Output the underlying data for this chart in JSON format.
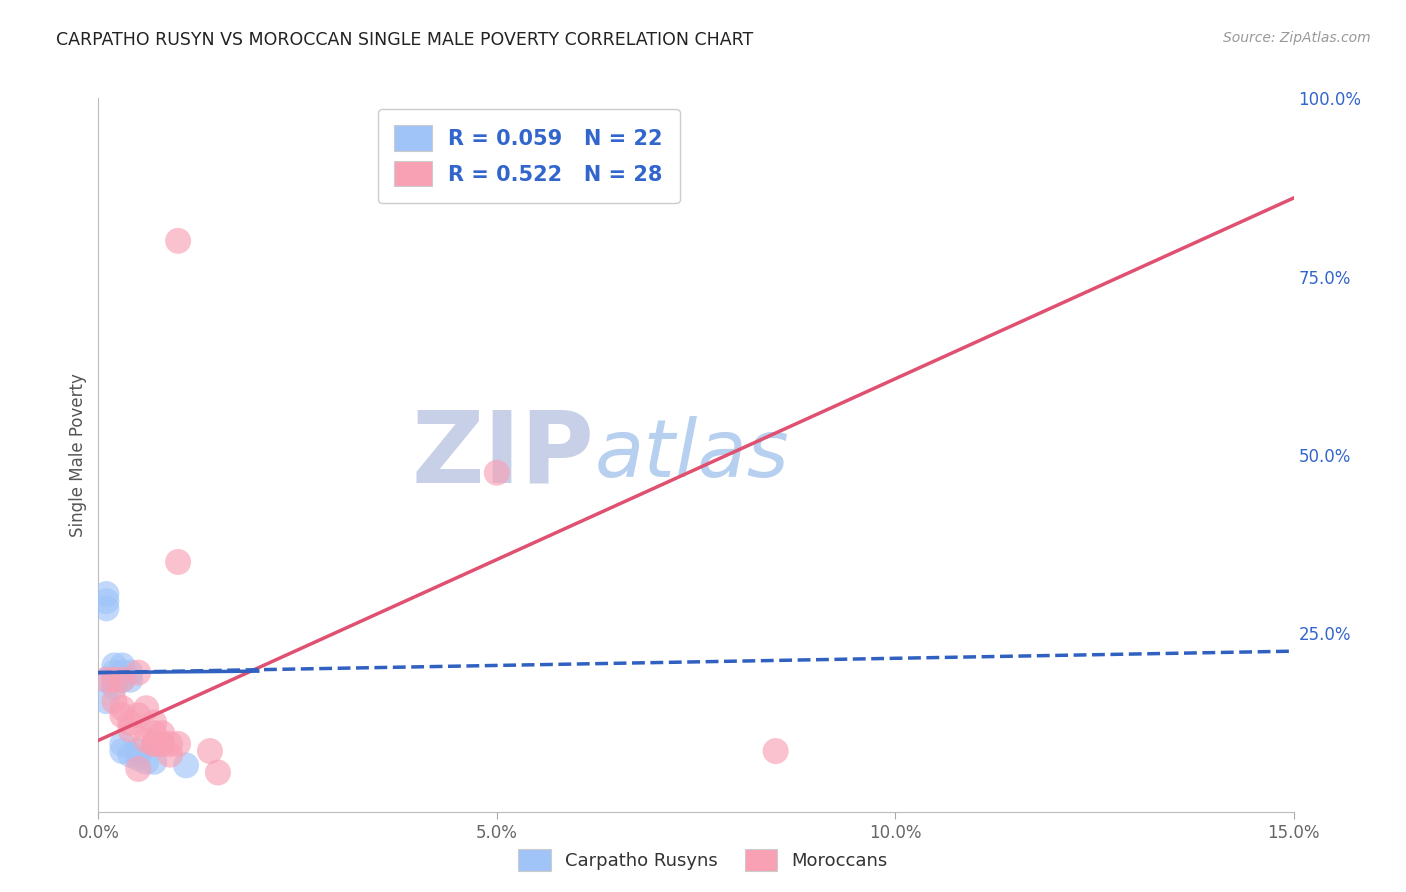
{
  "title": "CARPATHO RUSYN VS MOROCCAN SINGLE MALE POVERTY CORRELATION CHART",
  "source": "Source: ZipAtlas.com",
  "ylabel": "Single Male Poverty",
  "xlim": [
    0.0,
    0.15
  ],
  "ylim": [
    0.0,
    1.0
  ],
  "xticks": [
    0.0,
    0.05,
    0.1,
    0.15
  ],
  "xtick_labels": [
    "0.0%",
    "5.0%",
    "10.0%",
    "15.0%"
  ],
  "yticks": [
    0.0,
    0.25,
    0.5,
    0.75,
    1.0
  ],
  "ytick_labels": [
    "",
    "25.0%",
    "50.0%",
    "75.0%",
    "100.0%"
  ],
  "blue_R": 0.059,
  "blue_N": 22,
  "pink_R": 0.522,
  "pink_N": 28,
  "blue_scatter_color": "#A0C4F8",
  "pink_scatter_color": "#F8A0B4",
  "blue_line_color": "#3060C0",
  "pink_line_color": "#E05070",
  "watermark_zip_color": "#C8D0E8",
  "watermark_atlas_color": "#B8D0F0",
  "grid_color": "#CCCCCC",
  "bg_color": "#FFFFFF",
  "legend_text_color": "#3366CC",
  "blue_x": [
    0.001,
    0.001,
    0.001,
    0.001,
    0.002,
    0.002,
    0.002,
    0.002,
    0.003,
    0.003,
    0.003,
    0.003,
    0.003,
    0.004,
    0.004,
    0.004,
    0.005,
    0.005,
    0.006,
    0.007,
    0.011,
    0.001
  ],
  "blue_y": [
    0.305,
    0.295,
    0.285,
    0.155,
    0.205,
    0.195,
    0.185,
    0.175,
    0.205,
    0.195,
    0.185,
    0.095,
    0.085,
    0.195,
    0.185,
    0.08,
    0.085,
    0.075,
    0.07,
    0.07,
    0.065,
    0.185
  ],
  "pink_x": [
    0.01,
    0.001,
    0.002,
    0.002,
    0.003,
    0.003,
    0.003,
    0.004,
    0.004,
    0.005,
    0.005,
    0.006,
    0.006,
    0.007,
    0.007,
    0.007,
    0.007,
    0.008,
    0.008,
    0.009,
    0.009,
    0.01,
    0.01,
    0.014,
    0.015,
    0.05,
    0.085,
    0.005
  ],
  "pink_y": [
    0.8,
    0.185,
    0.185,
    0.155,
    0.185,
    0.145,
    0.135,
    0.125,
    0.115,
    0.195,
    0.135,
    0.145,
    0.1,
    0.095,
    0.125,
    0.11,
    0.095,
    0.11,
    0.095,
    0.08,
    0.095,
    0.35,
    0.095,
    0.085,
    0.055,
    0.475,
    0.085,
    0.06
  ],
  "blue_line_x0": 0.0,
  "blue_line_x1": 0.15,
  "blue_line_y0": 0.195,
  "blue_line_y1": 0.225,
  "pink_line_x0": 0.0,
  "pink_line_x1": 0.15,
  "pink_line_y0": 0.1,
  "pink_line_y1": 0.86
}
